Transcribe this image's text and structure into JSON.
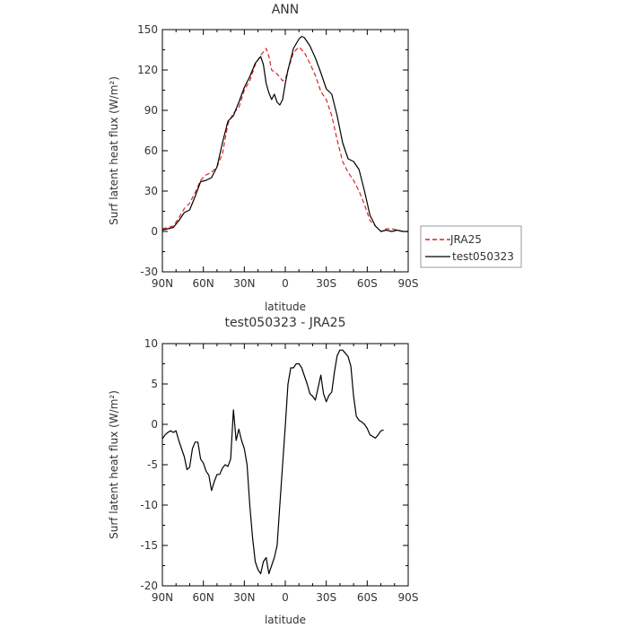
{
  "chart_data": [
    {
      "type": "line",
      "title": "ANN",
      "xlabel": "latitude",
      "ylabel": "Surf latent heat flux (W/m²)",
      "xlim": [
        90,
        -90
      ],
      "ylim": [
        -30,
        150
      ],
      "x_ticks": [
        90,
        60,
        30,
        0,
        -30,
        -60,
        -90
      ],
      "x_tick_labels": [
        "90N",
        "60N",
        "30N",
        "0",
        "30S",
        "60S",
        "90S"
      ],
      "y_ticks": [
        -30,
        0,
        30,
        60,
        90,
        120,
        150
      ],
      "y_tick_labels": [
        "-30",
        "0",
        "30",
        "60",
        "90",
        "120",
        "150"
      ],
      "legend_position": "right",
      "series": [
        {
          "name": "JRA25",
          "color": "#dd2222",
          "dash": "dashed",
          "points": [
            [
              90,
              2
            ],
            [
              86,
              3
            ],
            [
              82,
              4
            ],
            [
              78,
              10
            ],
            [
              74,
              17
            ],
            [
              70,
              21
            ],
            [
              66,
              29
            ],
            [
              62,
              38
            ],
            [
              58,
              42
            ],
            [
              54,
              44
            ],
            [
              50,
              48
            ],
            [
              46,
              58
            ],
            [
              42,
              80
            ],
            [
              38,
              88
            ],
            [
              34,
              92
            ],
            [
              30,
              105
            ],
            [
              26,
              112
            ],
            [
              22,
              124
            ],
            [
              18,
              131
            ],
            [
              14,
              136
            ],
            [
              12,
              130
            ],
            [
              10,
              120
            ],
            [
              6,
              117
            ],
            [
              2,
              112
            ],
            [
              0,
              113
            ],
            [
              -2,
              120
            ],
            [
              -6,
              133
            ],
            [
              -10,
              137
            ],
            [
              -14,
              133
            ],
            [
              -18,
              125
            ],
            [
              -22,
              116
            ],
            [
              -26,
              104
            ],
            [
              -30,
              98
            ],
            [
              -34,
              86
            ],
            [
              -38,
              68
            ],
            [
              -42,
              52
            ],
            [
              -46,
              44
            ],
            [
              -50,
              38
            ],
            [
              -54,
              30
            ],
            [
              -58,
              20
            ],
            [
              -62,
              8
            ],
            [
              -66,
              4
            ],
            [
              -70,
              0
            ],
            [
              -74,
              2
            ],
            [
              -78,
              2
            ],
            [
              -82,
              1
            ],
            [
              -86,
              0
            ],
            [
              -90,
              0
            ]
          ]
        },
        {
          "name": "test050323",
          "color": "#000000",
          "dash": "solid",
          "points": [
            [
              90,
              1
            ],
            [
              86,
              2
            ],
            [
              82,
              3
            ],
            [
              78,
              8
            ],
            [
              74,
              14
            ],
            [
              70,
              16
            ],
            [
              66,
              26
            ],
            [
              62,
              37
            ],
            [
              58,
              38
            ],
            [
              54,
              40
            ],
            [
              50,
              48
            ],
            [
              46,
              66
            ],
            [
              42,
              82
            ],
            [
              38,
              86
            ],
            [
              34,
              96
            ],
            [
              30,
              107
            ],
            [
              26,
              115
            ],
            [
              22,
              125
            ],
            [
              18,
              130
            ],
            [
              16,
              124
            ],
            [
              14,
              110
            ],
            [
              12,
              103
            ],
            [
              10,
              98
            ],
            [
              8,
              102
            ],
            [
              6,
              96
            ],
            [
              4,
              94
            ],
            [
              2,
              98
            ],
            [
              0,
              110
            ],
            [
              -2,
              120
            ],
            [
              -6,
              136
            ],
            [
              -10,
              143
            ],
            [
              -12,
              145
            ],
            [
              -14,
              144
            ],
            [
              -18,
              138
            ],
            [
              -22,
              129
            ],
            [
              -26,
              118
            ],
            [
              -30,
              106
            ],
            [
              -34,
              102
            ],
            [
              -38,
              86
            ],
            [
              -42,
              66
            ],
            [
              -46,
              54
            ],
            [
              -50,
              52
            ],
            [
              -54,
              46
            ],
            [
              -58,
              30
            ],
            [
              -62,
              12
            ],
            [
              -66,
              4
            ],
            [
              -70,
              0
            ],
            [
              -74,
              1
            ],
            [
              -78,
              0
            ],
            [
              -82,
              1
            ],
            [
              -86,
              0
            ],
            [
              -90,
              0
            ]
          ]
        }
      ]
    },
    {
      "type": "line",
      "title": "test050323 - JRA25",
      "xlabel": "latitude",
      "ylabel": "Surf latent heat flux (W/m²)",
      "xlim": [
        90,
        -90
      ],
      "ylim": [
        -20,
        10
      ],
      "x_ticks": [
        90,
        60,
        30,
        0,
        -30,
        -60,
        -90
      ],
      "x_tick_labels": [
        "90N",
        "60N",
        "30N",
        "0",
        "30S",
        "60S",
        "90S"
      ],
      "y_ticks": [
        -20,
        -15,
        -10,
        -5,
        0,
        5,
        10
      ],
      "y_tick_labels": [
        "-20",
        "-15",
        "-10",
        "-5",
        "0",
        "5",
        "10"
      ],
      "series": [
        {
          "color": "#000000",
          "dash": "solid",
          "points": [
            [
              90,
              -1.8
            ],
            [
              88,
              -1.3
            ],
            [
              86,
              -1.0
            ],
            [
              84,
              -0.8
            ],
            [
              82,
              -1.0
            ],
            [
              80,
              -0.8
            ],
            [
              78,
              -2.0
            ],
            [
              76,
              -3.0
            ],
            [
              74,
              -4.0
            ],
            [
              72,
              -5.6
            ],
            [
              70,
              -5.3
            ],
            [
              68,
              -3.0
            ],
            [
              66,
              -2.2
            ],
            [
              64,
              -2.2
            ],
            [
              62,
              -4.3
            ],
            [
              60,
              -4.8
            ],
            [
              58,
              -5.8
            ],
            [
              56,
              -6.3
            ],
            [
              54,
              -8.2
            ],
            [
              52,
              -7.1
            ],
            [
              50,
              -6.2
            ],
            [
              48,
              -6.2
            ],
            [
              46,
              -5.4
            ],
            [
              44,
              -5.0
            ],
            [
              42,
              -5.2
            ],
            [
              40,
              -4.3
            ],
            [
              38,
              1.8
            ],
            [
              36,
              -2.0
            ],
            [
              34,
              -0.6
            ],
            [
              32,
              -2.0
            ],
            [
              30,
              -3.0
            ],
            [
              28,
              -5.0
            ],
            [
              26,
              -10.0
            ],
            [
              24,
              -14.0
            ],
            [
              22,
              -17.0
            ],
            [
              20,
              -18.0
            ],
            [
              18,
              -18.5
            ],
            [
              16,
              -17.0
            ],
            [
              14,
              -16.5
            ],
            [
              12,
              -18.5
            ],
            [
              8,
              -16.5
            ],
            [
              6,
              -15.0
            ],
            [
              4,
              -10.0
            ],
            [
              2,
              -5.0
            ],
            [
              0,
              -0.2
            ],
            [
              -2,
              5.0
            ],
            [
              -4,
              7.0
            ],
            [
              -6,
              7.0
            ],
            [
              -8,
              7.5
            ],
            [
              -10,
              7.5
            ],
            [
              -12,
              7.0
            ],
            [
              -14,
              6.0
            ],
            [
              -16,
              5.0
            ],
            [
              -18,
              3.8
            ],
            [
              -20,
              3.5
            ],
            [
              -22,
              3.0
            ],
            [
              -24,
              4.5
            ],
            [
              -26,
              6.1
            ],
            [
              -28,
              3.8
            ],
            [
              -30,
              2.8
            ],
            [
              -32,
              3.6
            ],
            [
              -34,
              4.0
            ],
            [
              -36,
              6.5
            ],
            [
              -38,
              8.5
            ],
            [
              -40,
              9.2
            ],
            [
              -42,
              9.2
            ],
            [
              -44,
              8.8
            ],
            [
              -46,
              8.4
            ],
            [
              -48,
              7.2
            ],
            [
              -50,
              3.5
            ],
            [
              -52,
              1.0
            ],
            [
              -54,
              0.5
            ],
            [
              -56,
              0.3
            ],
            [
              -58,
              0.0
            ],
            [
              -60,
              -0.5
            ],
            [
              -62,
              -1.3
            ],
            [
              -64,
              -1.5
            ],
            [
              -66,
              -1.7
            ],
            [
              -68,
              -1.3
            ],
            [
              -70,
              -0.8
            ],
            [
              -72,
              -0.7
            ]
          ]
        }
      ]
    }
  ]
}
